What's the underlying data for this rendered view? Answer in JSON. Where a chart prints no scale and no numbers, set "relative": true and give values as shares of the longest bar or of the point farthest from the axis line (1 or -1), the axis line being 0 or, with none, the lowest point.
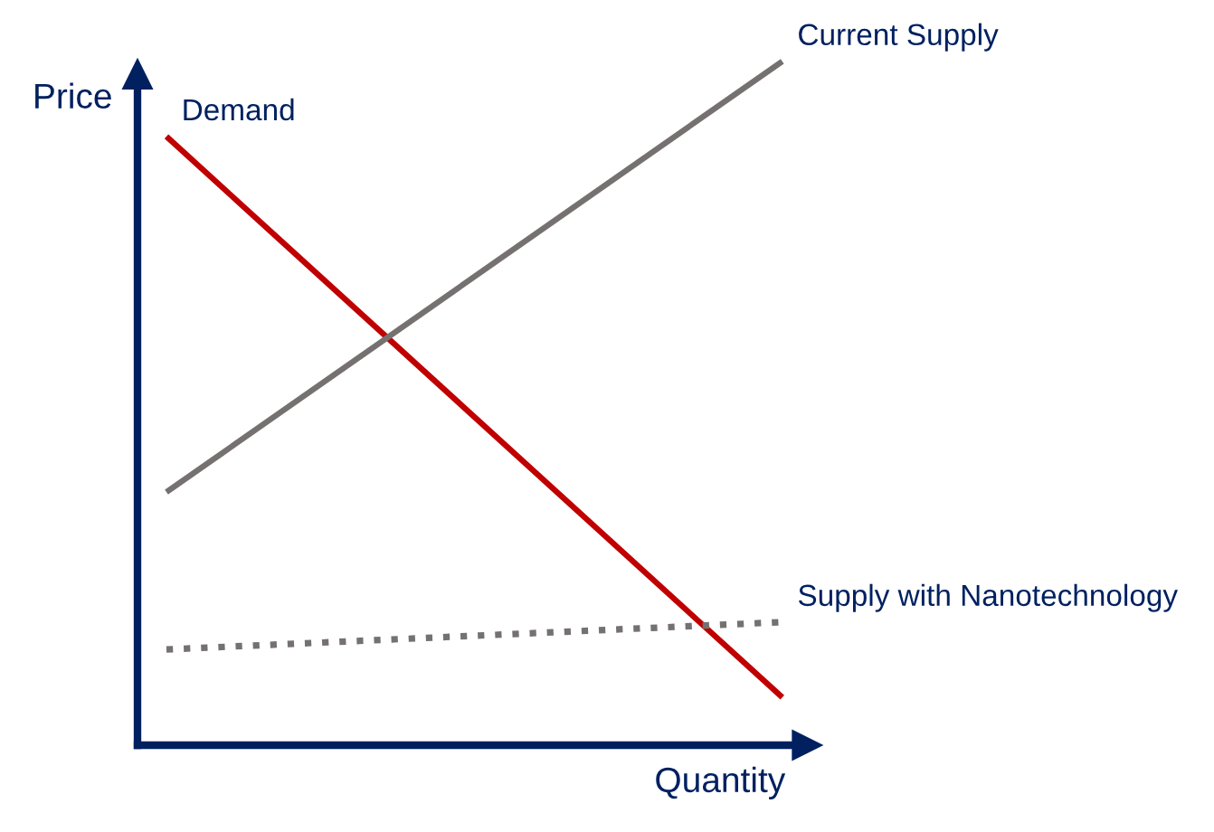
{
  "chart_data": {
    "type": "line",
    "xlabel": "Quantity",
    "ylabel": "Price",
    "relative": true,
    "categories": [
      null,
      null
    ],
    "legend": false,
    "series": [
      {
        "name": "Demand",
        "color": "#c00000",
        "values": [
          0.89,
          0.07
        ],
        "line_style": "solid"
      },
      {
        "name": "Current Supply",
        "color": "#767171",
        "values": [
          0.37,
          1
        ],
        "line_style": "solid"
      },
      {
        "name": "Supply with Nanotechnology",
        "color": "#767171",
        "values": [
          0.14,
          0.18
        ],
        "line_style": "dotted"
      }
    ]
  }
}
